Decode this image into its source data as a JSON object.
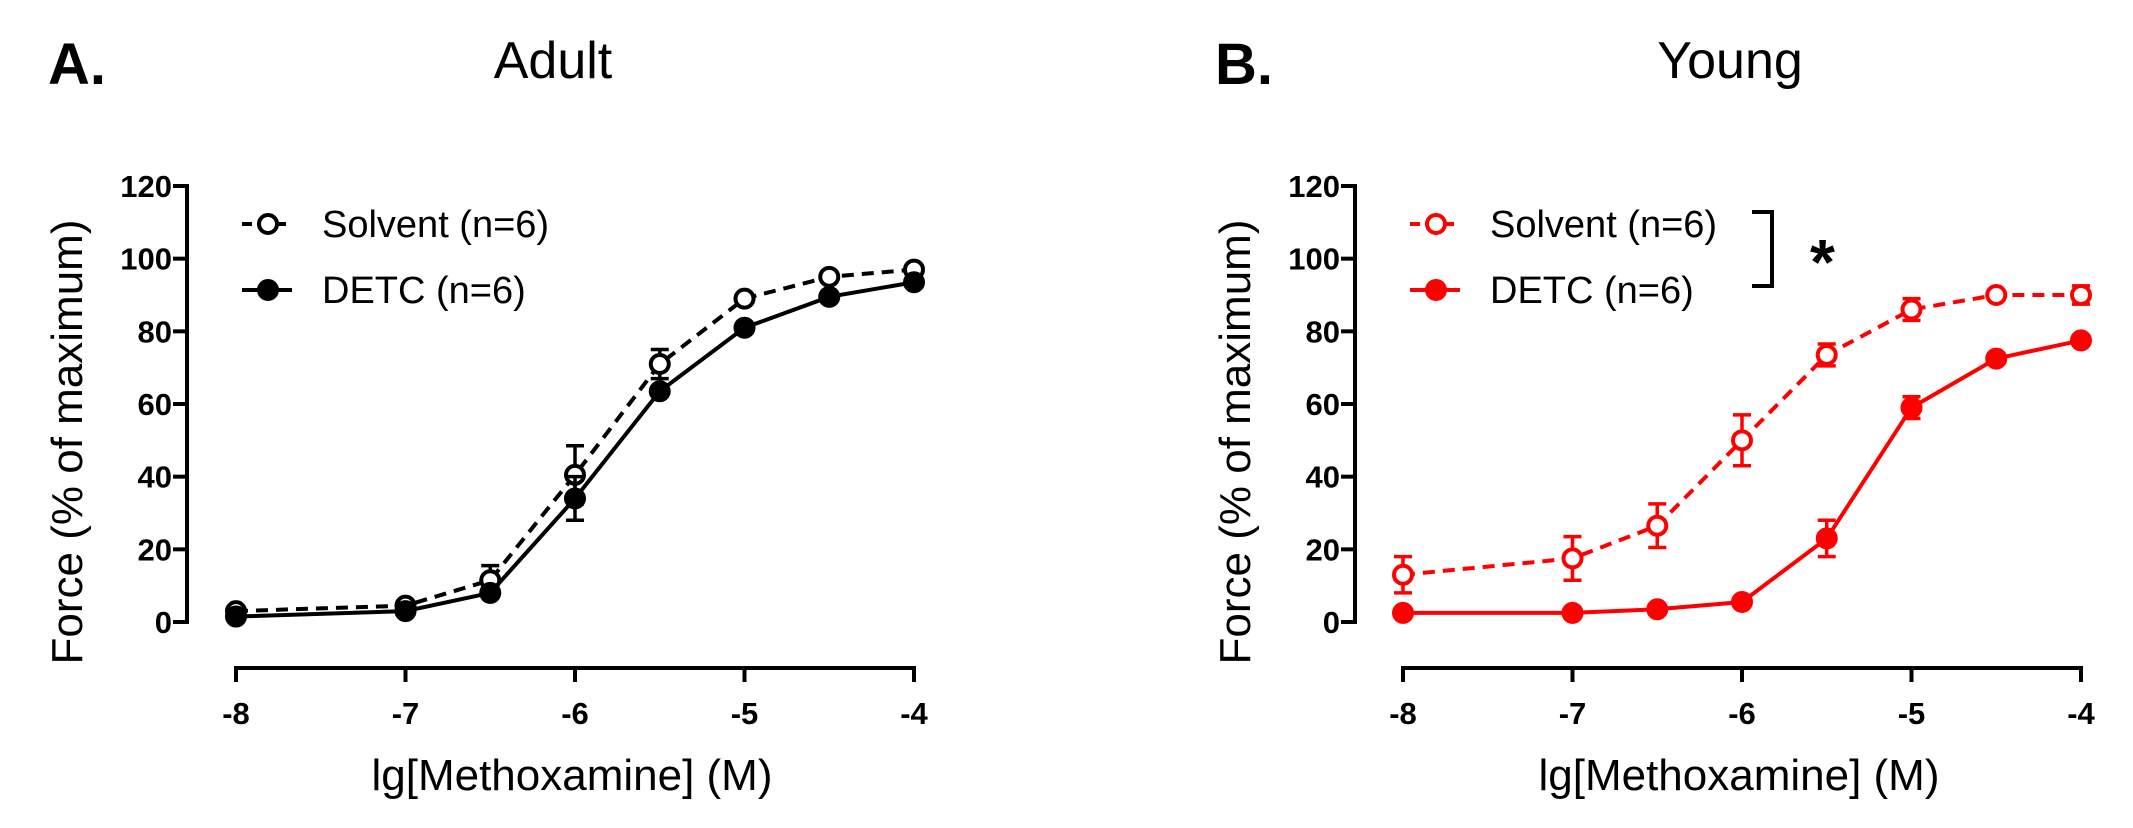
{
  "panels": [
    {
      "letter": "A.",
      "title": "Adult",
      "xlabel": "lg[Methoxamine] (M)",
      "ylabel": "Force (% of maximum)",
      "significance": "",
      "color": "#000000"
    },
    {
      "letter": "B.",
      "title": "Young",
      "xlabel": "lg[Methoxamine] (M)",
      "ylabel": "Force (% of maximum)",
      "significance": "*",
      "color": "#ff0000"
    }
  ],
  "chart_data": [
    {
      "type": "line",
      "title": "Adult",
      "xlabel": "lg[Methoxamine] (M)",
      "ylabel": "Force (% of maximum)",
      "xlim": [
        -8,
        -4
      ],
      "ylim": [
        0,
        120
      ],
      "xticks": [
        -8,
        -7,
        -6,
        -5,
        -4
      ],
      "yticks": [
        0,
        20,
        40,
        60,
        80,
        100,
        120
      ],
      "legend_position": "top-left",
      "series": [
        {
          "name": "Solvent (n=6)",
          "style": "dashed-open-circle",
          "color": "#000000",
          "x": [
            -8,
            -7,
            -6.5,
            -6,
            -5.5,
            -5,
            -4.5,
            -4
          ],
          "y": [
            3,
            4.5,
            11.5,
            40.5,
            71,
            89,
            95,
            97
          ],
          "err": [
            0,
            0,
            4,
            8,
            4,
            1,
            0,
            0
          ]
        },
        {
          "name": "DETC (n=6)",
          "style": "solid-filled-circle",
          "color": "#000000",
          "x": [
            -8,
            -7,
            -6.5,
            -6,
            -5.5,
            -5,
            -4.5,
            -4
          ],
          "y": [
            1.5,
            3,
            8,
            34,
            63.5,
            81,
            89.5,
            93.5
          ],
          "err": [
            0,
            0,
            1,
            6,
            0,
            0,
            0,
            0
          ]
        }
      ]
    },
    {
      "type": "line",
      "title": "Young",
      "xlabel": "lg[Methoxamine] (M)",
      "ylabel": "Force (% of maximum)",
      "xlim": [
        -8,
        -4
      ],
      "ylim": [
        0,
        120
      ],
      "xticks": [
        -8,
        -7,
        -6,
        -5,
        -4
      ],
      "yticks": [
        0,
        20,
        40,
        60,
        80,
        100,
        120
      ],
      "legend_position": "top-left",
      "annotation": "*",
      "series": [
        {
          "name": "Solvent (n=6)",
          "style": "dashed-open-circle",
          "color": "#ff0000",
          "x": [
            -8,
            -7,
            -6.5,
            -6,
            -5.5,
            -5,
            -4.5,
            -4
          ],
          "y": [
            13,
            17.5,
            26.5,
            50,
            73.5,
            86,
            90,
            90
          ],
          "err": [
            5,
            6,
            6,
            7,
            3,
            3,
            0,
            2.5
          ]
        },
        {
          "name": "DETC (n=6)",
          "style": "solid-filled-circle",
          "color": "#ff0000",
          "x": [
            -8,
            -7,
            -6.5,
            -6,
            -5.5,
            -5,
            -4.5,
            -4
          ],
          "y": [
            2.5,
            2.5,
            3.5,
            5.5,
            23,
            59,
            72.5,
            77.5
          ],
          "err": [
            0,
            0,
            0,
            0,
            5,
            3,
            0,
            0
          ]
        }
      ]
    }
  ]
}
